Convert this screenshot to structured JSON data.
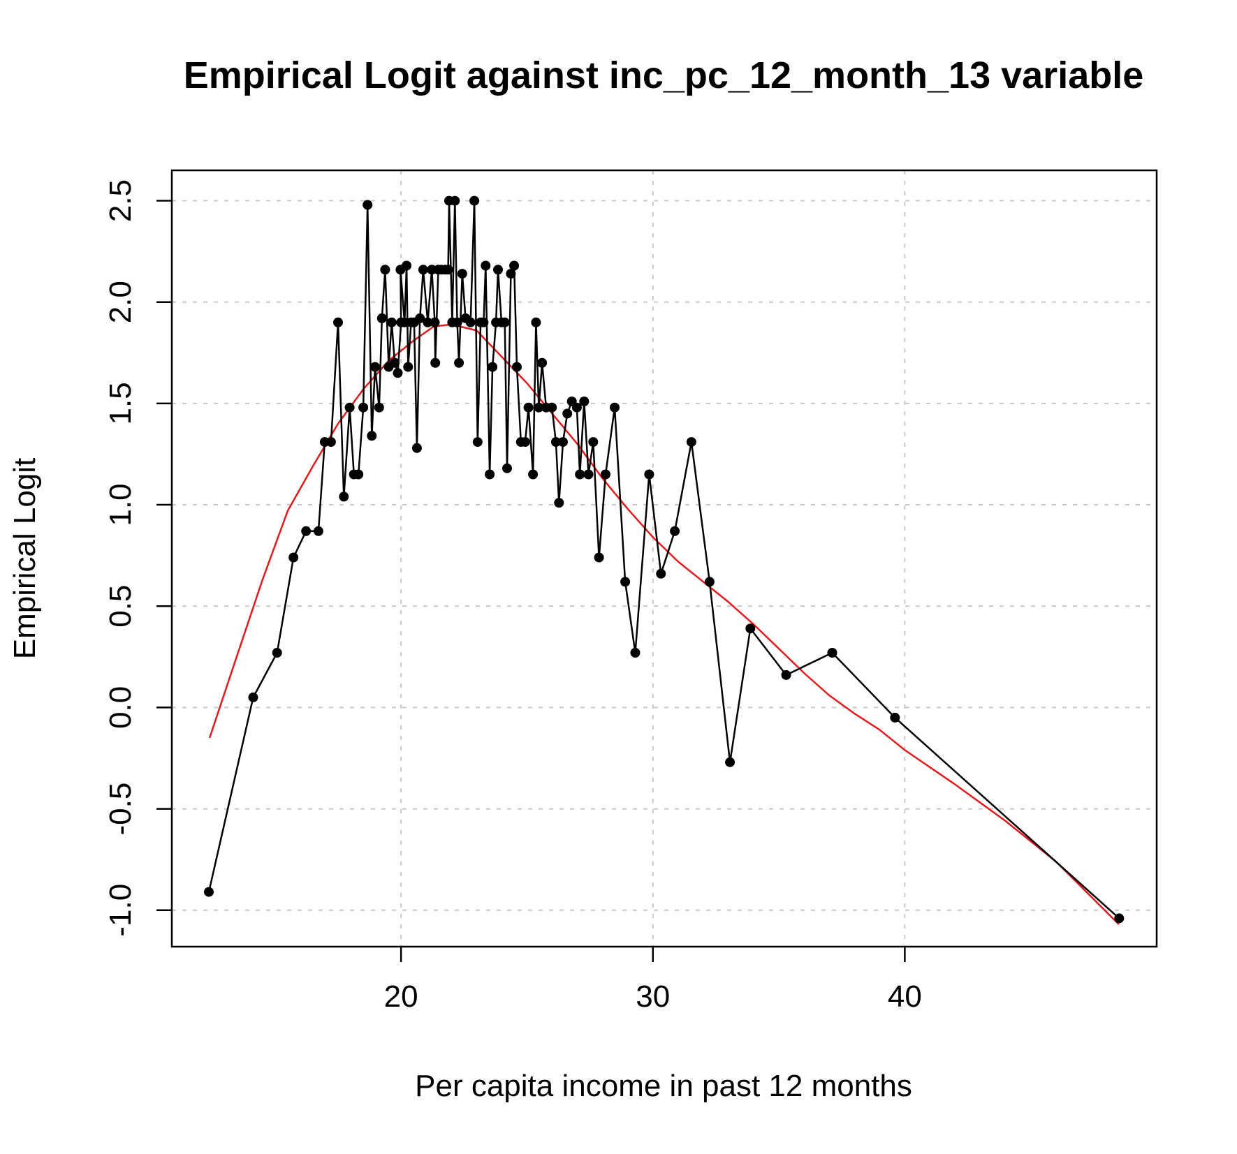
{
  "chart_data": {
    "type": "line",
    "title": "Empirical Logit against inc_pc_12_month_13 variable",
    "xlabel": "Per capita income in past 12 months",
    "ylabel": "Empirical Logit",
    "xlim": [
      10.9,
      50.0
    ],
    "ylim": [
      -1.18,
      2.65
    ],
    "x_ticks": [
      20,
      30,
      40
    ],
    "x_tick_labels": [
      "20",
      "30",
      "40"
    ],
    "y_ticks": [
      -1.0,
      -0.5,
      0.0,
      0.5,
      1.0,
      1.5,
      2.0,
      2.5
    ],
    "y_tick_labels": [
      "-1.0",
      "-0.5",
      "0.0",
      "0.5",
      "1.0",
      "1.5",
      "2.0",
      "2.5"
    ],
    "grid": true,
    "colors": {
      "points": "#000000",
      "connecting_line": "#000000",
      "smooth_curve": "#e41a1c",
      "grid": "#c8c8c8",
      "frame": "#000000"
    },
    "series": [
      {
        "type": "line_points",
        "points": [
          [
            12.37,
            -0.91
          ],
          [
            14.13,
            0.05
          ],
          [
            15.08,
            0.27
          ],
          [
            15.73,
            0.74
          ],
          [
            16.23,
            0.87
          ],
          [
            16.72,
            0.87
          ],
          [
            16.97,
            1.31
          ],
          [
            17.22,
            1.31
          ],
          [
            17.5,
            1.9
          ],
          [
            17.73,
            1.04
          ],
          [
            17.96,
            1.48
          ],
          [
            18.13,
            1.15
          ],
          [
            18.31,
            1.15
          ],
          [
            18.5,
            1.48
          ],
          [
            18.67,
            2.48
          ],
          [
            18.84,
            1.34
          ],
          [
            18.97,
            1.68
          ],
          [
            19.13,
            1.48
          ],
          [
            19.24,
            1.92
          ],
          [
            19.37,
            2.16
          ],
          [
            19.51,
            1.68
          ],
          [
            19.63,
            1.9
          ],
          [
            19.75,
            1.7
          ],
          [
            19.87,
            1.65
          ],
          [
            20.0,
            1.9
          ],
          [
            19.98,
            2.16
          ],
          [
            20.14,
            1.9
          ],
          [
            20.22,
            2.18
          ],
          [
            20.28,
            1.68
          ],
          [
            20.4,
            1.9
          ],
          [
            20.52,
            1.9
          ],
          [
            20.63,
            1.28
          ],
          [
            20.75,
            1.92
          ],
          [
            20.88,
            2.16
          ],
          [
            21.06,
            1.9
          ],
          [
            21.22,
            2.16
          ],
          [
            21.34,
            1.9
          ],
          [
            21.36,
            1.7
          ],
          [
            21.48,
            2.16
          ],
          [
            21.6,
            2.16
          ],
          [
            21.75,
            2.16
          ],
          [
            21.87,
            2.16
          ],
          [
            21.91,
            2.5
          ],
          [
            22.03,
            1.9
          ],
          [
            22.14,
            2.5
          ],
          [
            22.23,
            1.9
          ],
          [
            22.3,
            1.7
          ],
          [
            22.43,
            2.14
          ],
          [
            22.56,
            1.92
          ],
          [
            22.76,
            1.9
          ],
          [
            22.91,
            2.5
          ],
          [
            23.04,
            1.31
          ],
          [
            23.16,
            1.9
          ],
          [
            23.28,
            1.9
          ],
          [
            23.36,
            2.18
          ],
          [
            23.52,
            1.15
          ],
          [
            23.63,
            1.68
          ],
          [
            23.77,
            1.9
          ],
          [
            23.85,
            2.16
          ],
          [
            23.99,
            1.9
          ],
          [
            24.12,
            1.9
          ],
          [
            24.21,
            1.18
          ],
          [
            24.36,
            2.14
          ],
          [
            24.49,
            2.18
          ],
          [
            24.6,
            1.68
          ],
          [
            24.76,
            1.31
          ],
          [
            24.93,
            1.31
          ],
          [
            25.06,
            1.48
          ],
          [
            25.24,
            1.15
          ],
          [
            25.36,
            1.9
          ],
          [
            25.47,
            1.48
          ],
          [
            25.6,
            1.7
          ],
          [
            25.76,
            1.48
          ],
          [
            25.99,
            1.48
          ],
          [
            26.15,
            1.31
          ],
          [
            26.27,
            1.01
          ],
          [
            26.43,
            1.31
          ],
          [
            26.6,
            1.45
          ],
          [
            26.78,
            1.51
          ],
          [
            26.98,
            1.48
          ],
          [
            27.1,
            1.15
          ],
          [
            27.27,
            1.51
          ],
          [
            27.44,
            1.15
          ],
          [
            27.63,
            1.31
          ],
          [
            27.86,
            0.74
          ],
          [
            28.12,
            1.15
          ],
          [
            28.48,
            1.48
          ],
          [
            28.9,
            0.62
          ],
          [
            29.3,
            0.27
          ],
          [
            29.85,
            1.15
          ],
          [
            30.32,
            0.66
          ],
          [
            30.87,
            0.87
          ],
          [
            31.53,
            1.31
          ],
          [
            32.25,
            0.62
          ],
          [
            33.06,
            -0.27
          ],
          [
            33.87,
            0.39
          ],
          [
            35.29,
            0.16
          ],
          [
            37.12,
            0.27
          ],
          [
            39.61,
            -0.05
          ],
          [
            48.51,
            -1.04
          ]
        ]
      },
      {
        "type": "smooth",
        "points": [
          [
            12.4,
            -0.15
          ],
          [
            13.5,
            0.26
          ],
          [
            14.5,
            0.63
          ],
          [
            15.5,
            0.97
          ],
          [
            16.5,
            1.19
          ],
          [
            17.5,
            1.4
          ],
          [
            18.5,
            1.57
          ],
          [
            19.5,
            1.71
          ],
          [
            20.5,
            1.81
          ],
          [
            21.3,
            1.88
          ],
          [
            22.0,
            1.89
          ],
          [
            23.0,
            1.86
          ],
          [
            24.0,
            1.73
          ],
          [
            25.0,
            1.6
          ],
          [
            26.0,
            1.45
          ],
          [
            27.0,
            1.3
          ],
          [
            28.0,
            1.13
          ],
          [
            29.0,
            0.98
          ],
          [
            30.0,
            0.84
          ],
          [
            31.0,
            0.72
          ],
          [
            32.0,
            0.62
          ],
          [
            33.0,
            0.52
          ],
          [
            34.0,
            0.41
          ],
          [
            35.0,
            0.29
          ],
          [
            36.0,
            0.17
          ],
          [
            37.0,
            0.06
          ],
          [
            38.0,
            -0.03
          ],
          [
            39.0,
            -0.11
          ],
          [
            40.0,
            -0.21
          ],
          [
            42.0,
            -0.38
          ],
          [
            44.0,
            -0.56
          ],
          [
            46.0,
            -0.76
          ],
          [
            48.5,
            -1.07
          ]
        ]
      }
    ]
  }
}
